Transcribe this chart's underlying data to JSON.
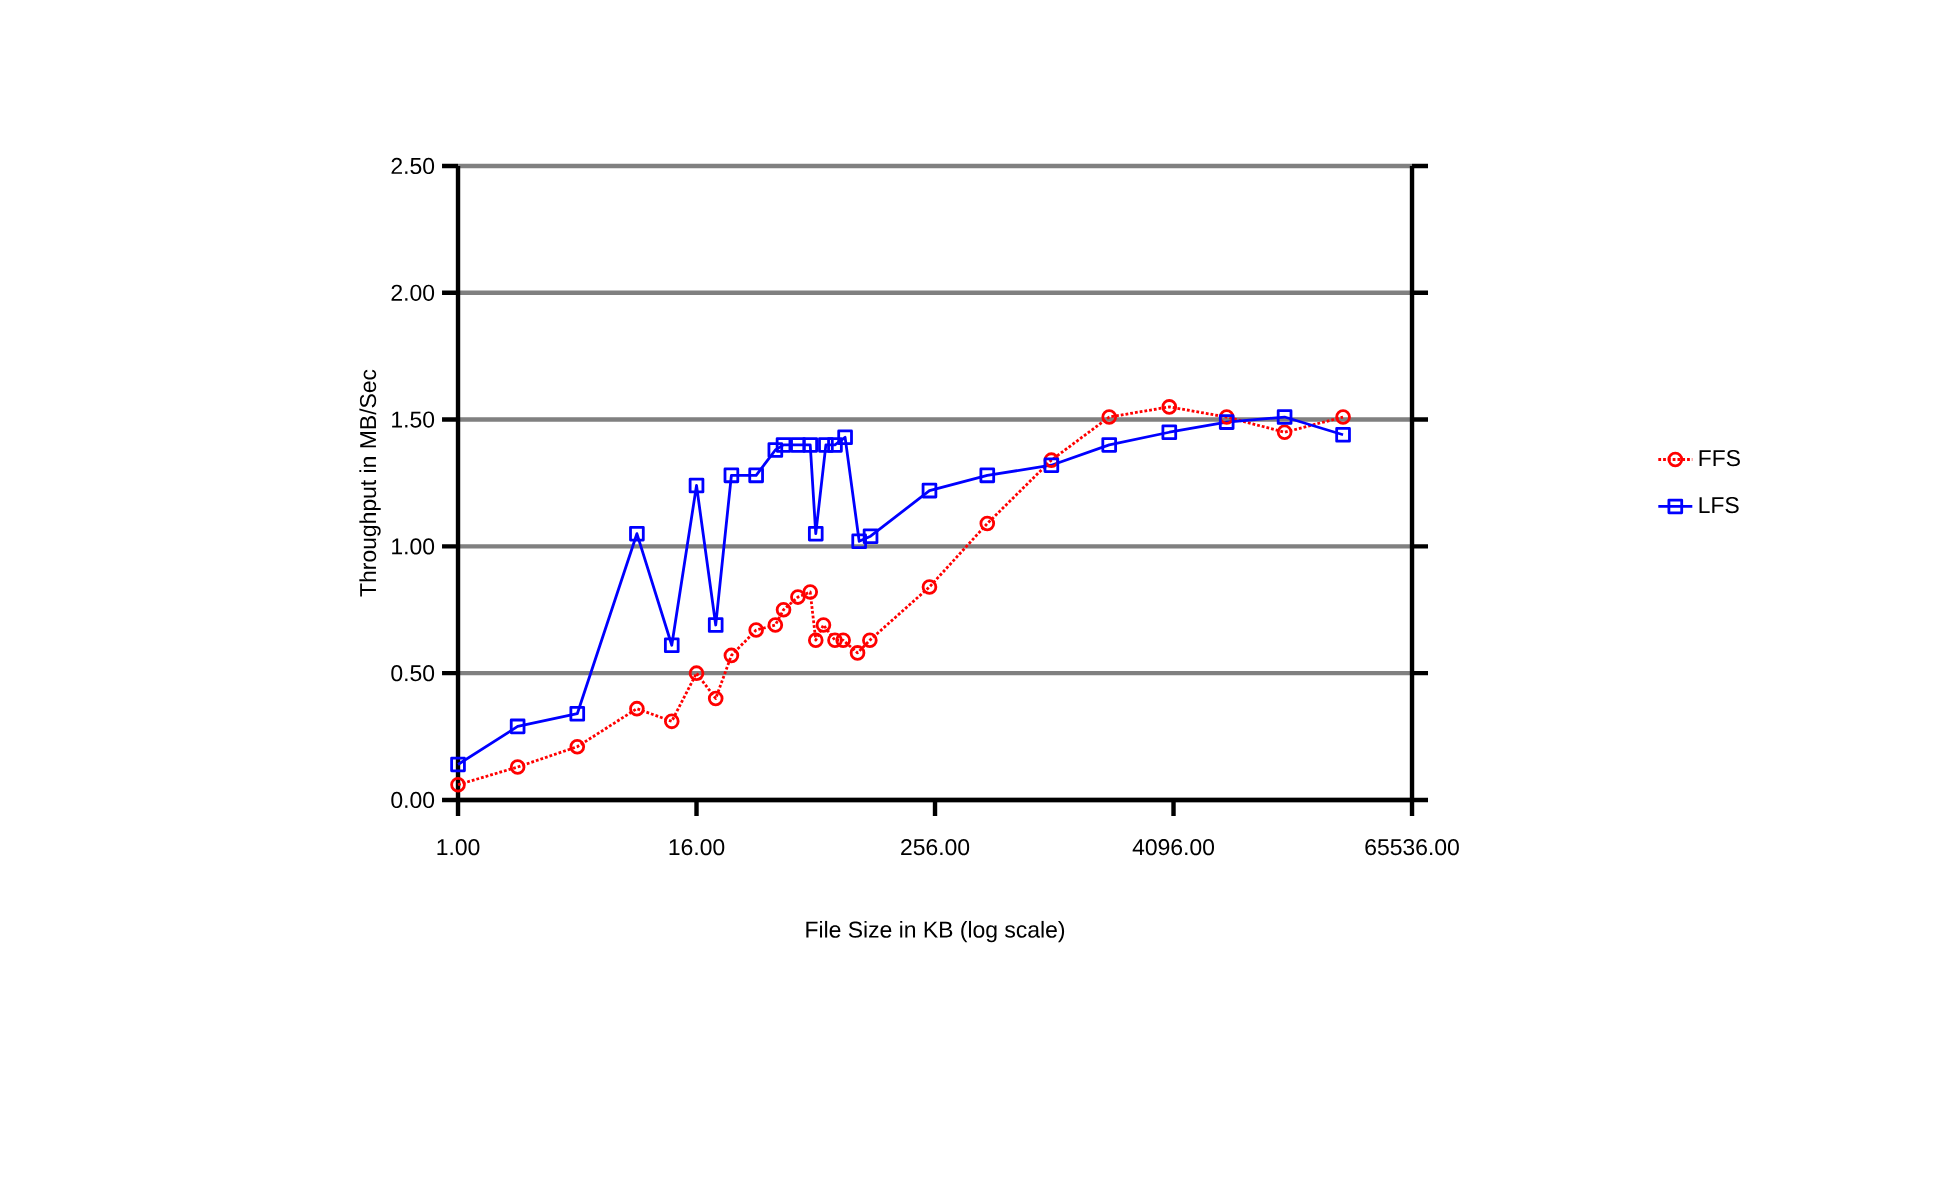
{
  "chart_data": {
    "type": "line",
    "xlabel": "File Size in KB (log scale)",
    "ylabel": "Throughput in MB/Sec",
    "log": "x",
    "xlim": [
      1,
      65536
    ],
    "ylim": [
      0,
      2.5
    ],
    "xticks": [
      {
        "value": 1,
        "label": "1.00"
      },
      {
        "value": 16,
        "label": "16.00"
      },
      {
        "value": 256,
        "label": "256.00"
      },
      {
        "value": 4096,
        "label": "4096.00"
      },
      {
        "value": 65536,
        "label": "65536.00"
      }
    ],
    "yticks": [
      {
        "value": 0,
        "label": "0.00"
      },
      {
        "value": 0.5,
        "label": "0.50"
      },
      {
        "value": 1,
        "label": "1.00"
      },
      {
        "value": 1.5,
        "label": "1.50"
      },
      {
        "value": 2,
        "label": "2.00"
      },
      {
        "value": 2.5,
        "label": "2.50"
      }
    ],
    "grid": "y",
    "legend": "right",
    "series": [
      {
        "name": "FFS",
        "color": "#ff0000",
        "marker": "circle",
        "line_style": "dotted",
        "x": [
          1,
          2,
          4,
          8,
          12,
          16,
          20,
          24,
          32,
          40,
          44,
          52,
          60,
          64,
          70,
          80,
          88,
          104,
          120,
          240,
          470,
          990,
          1940,
          3900,
          7600,
          14900,
          29400
        ],
        "values": [
          0.06,
          0.13,
          0.21,
          0.36,
          0.31,
          0.5,
          0.4,
          0.57,
          0.67,
          0.69,
          0.75,
          0.8,
          0.82,
          0.63,
          0.69,
          0.63,
          0.63,
          0.58,
          0.63,
          0.84,
          1.09,
          1.34,
          1.51,
          1.55,
          1.51,
          1.45,
          1.51
        ]
      },
      {
        "name": "LFS",
        "color": "#0000ff",
        "marker": "square",
        "line_style": "solid",
        "x": [
          1,
          2,
          4,
          8,
          12,
          16,
          20,
          24,
          32,
          40,
          44,
          52,
          60,
          64,
          72,
          80,
          90,
          106,
          121,
          240,
          470,
          990,
          1940,
          3900,
          7600,
          14900,
          29400
        ],
        "values": [
          0.14,
          0.29,
          0.34,
          1.05,
          0.61,
          1.24,
          0.69,
          1.28,
          1.28,
          1.38,
          1.4,
          1.4,
          1.4,
          1.05,
          1.4,
          1.4,
          1.43,
          1.02,
          1.04,
          1.22,
          1.28,
          1.32,
          1.4,
          1.45,
          1.49,
          1.51,
          1.44
        ]
      }
    ]
  }
}
